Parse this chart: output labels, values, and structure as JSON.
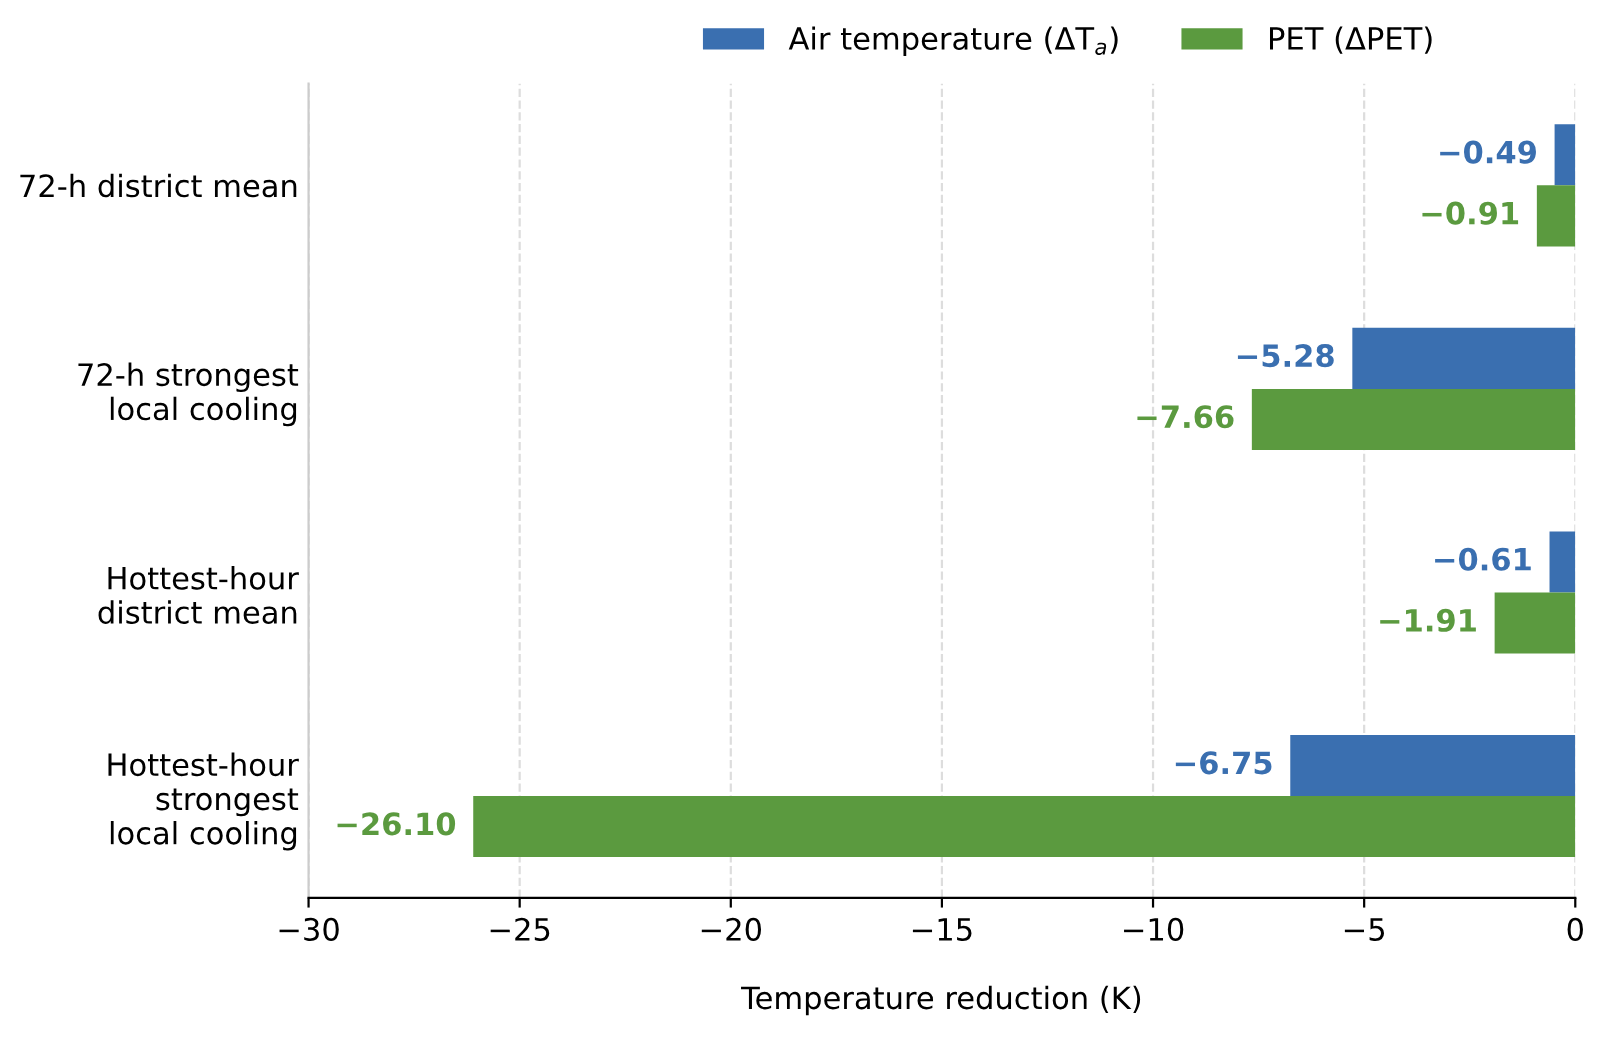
{
  "chart_data": {
    "type": "bar",
    "orientation": "horizontal",
    "xlabel": "Temperature reduction (K)",
    "categories": [
      "72-h district mean",
      "72-h strongest\nlocal cooling",
      "Hottest-hour\ndistrict mean",
      "Hottest-hour\nstrongest\nlocal cooling"
    ],
    "series": [
      {
        "name": "Air temperature (ΔT$_{a}$)",
        "color": "#3a6fb0",
        "values": [
          -0.49,
          -5.28,
          -0.61,
          -6.75
        ],
        "value_labels": [
          "−0.49",
          "−5.28",
          "−0.61",
          "−6.75"
        ]
      },
      {
        "name": "PET (ΔPET)",
        "color": "#5b9a3f",
        "values": [
          -0.91,
          -7.66,
          -1.91,
          -26.1
        ],
        "value_labels": [
          "−0.91",
          "−7.66",
          "−1.91",
          "−26.10"
        ]
      }
    ],
    "xlim": [
      -30,
      0
    ],
    "xticks": [
      {
        "value": -30,
        "label": "−30"
      },
      {
        "value": -25,
        "label": "−25"
      },
      {
        "value": -20,
        "label": "−20"
      },
      {
        "value": -15,
        "label": "−15"
      },
      {
        "value": -10,
        "label": "−10"
      },
      {
        "value": -5,
        "label": "−5"
      },
      0
    ],
    "grid": "x",
    "legend": "top"
  }
}
